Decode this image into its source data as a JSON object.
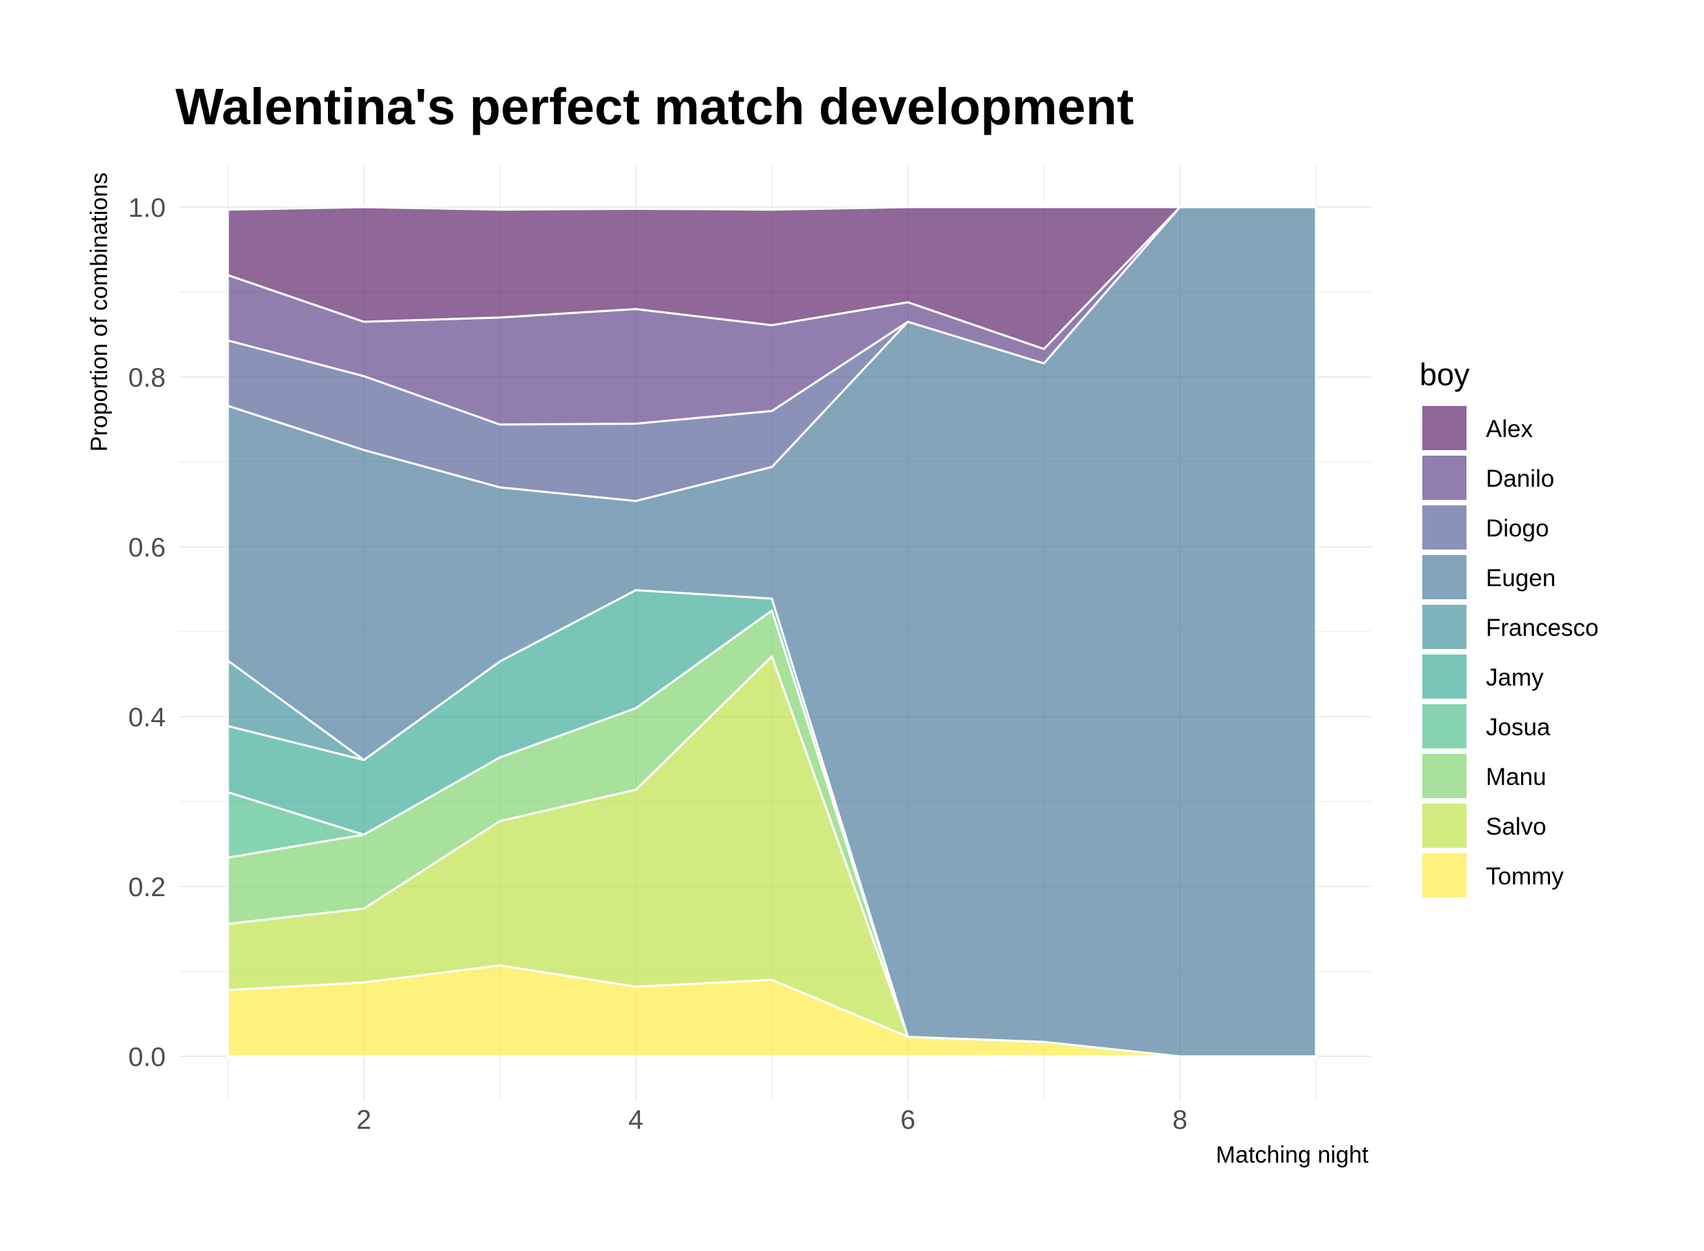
{
  "chart_data": {
    "type": "area",
    "stacked": true,
    "title": "Walentina's perfect match development",
    "xlabel": "Matching night",
    "ylabel": "Proportion of combinations",
    "xlim": [
      1,
      9
    ],
    "ylim": [
      0,
      1
    ],
    "x_ticks": [
      2,
      4,
      6,
      8
    ],
    "y_ticks": [
      0.0,
      0.2,
      0.4,
      0.6,
      0.8,
      1.0
    ],
    "y_tick_labels": [
      "0.0",
      "0.2",
      "0.4",
      "0.6",
      "0.8",
      "1.0"
    ],
    "grid": true,
    "legend_title": "boy",
    "legend_position": "right",
    "x": [
      1,
      2,
      3,
      4,
      5,
      6,
      7,
      8,
      9
    ],
    "series": [
      {
        "name": "Alex",
        "color": "#440154",
        "values": [
          0.077,
          0.135,
          0.127,
          0.118,
          0.136,
          0.112,
          0.167,
          0.0,
          0.0
        ]
      },
      {
        "name": "Danilo",
        "color": "#482878",
        "values": [
          0.077,
          0.064,
          0.126,
          0.135,
          0.101,
          0.023,
          0.017,
          0.0,
          0.0
        ]
      },
      {
        "name": "Diogo",
        "color": "#3E4A89",
        "values": [
          0.077,
          0.087,
          0.074,
          0.091,
          0.066,
          0.0,
          0.0,
          0.0,
          0.0
        ]
      },
      {
        "name": "Eugen",
        "color": "#31688E",
        "values": [
          0.3,
          0.365,
          0.205,
          0.105,
          0.155,
          0.842,
          0.799,
          1.0,
          1.0
        ]
      },
      {
        "name": "Francesco",
        "color": "#26828E",
        "values": [
          0.077,
          0.0,
          0.0,
          0.0,
          0.0,
          0.0,
          0.0,
          0.0,
          0.0
        ]
      },
      {
        "name": "Jamy",
        "color": "#1F9E89",
        "values": [
          0.078,
          0.088,
          0.113,
          0.139,
          0.014,
          0.0,
          0.0,
          0.0,
          0.0
        ]
      },
      {
        "name": "Josua",
        "color": "#35B779",
        "values": [
          0.077,
          0.0,
          0.0,
          0.0,
          0.0,
          0.0,
          0.0,
          0.0,
          0.0
        ]
      },
      {
        "name": "Manu",
        "color": "#6DCD59",
        "values": [
          0.078,
          0.087,
          0.075,
          0.096,
          0.054,
          0.0,
          0.0,
          0.0,
          0.0
        ]
      },
      {
        "name": "Salvo",
        "color": "#B4DE2C",
        "values": [
          0.078,
          0.087,
          0.17,
          0.232,
          0.381,
          0.0,
          0.0,
          0.0,
          0.0
        ]
      },
      {
        "name": "Tommy",
        "color": "#FDE725",
        "values": [
          0.078,
          0.087,
          0.107,
          0.082,
          0.09,
          0.023,
          0.017,
          0.0,
          0.0
        ]
      }
    ]
  }
}
